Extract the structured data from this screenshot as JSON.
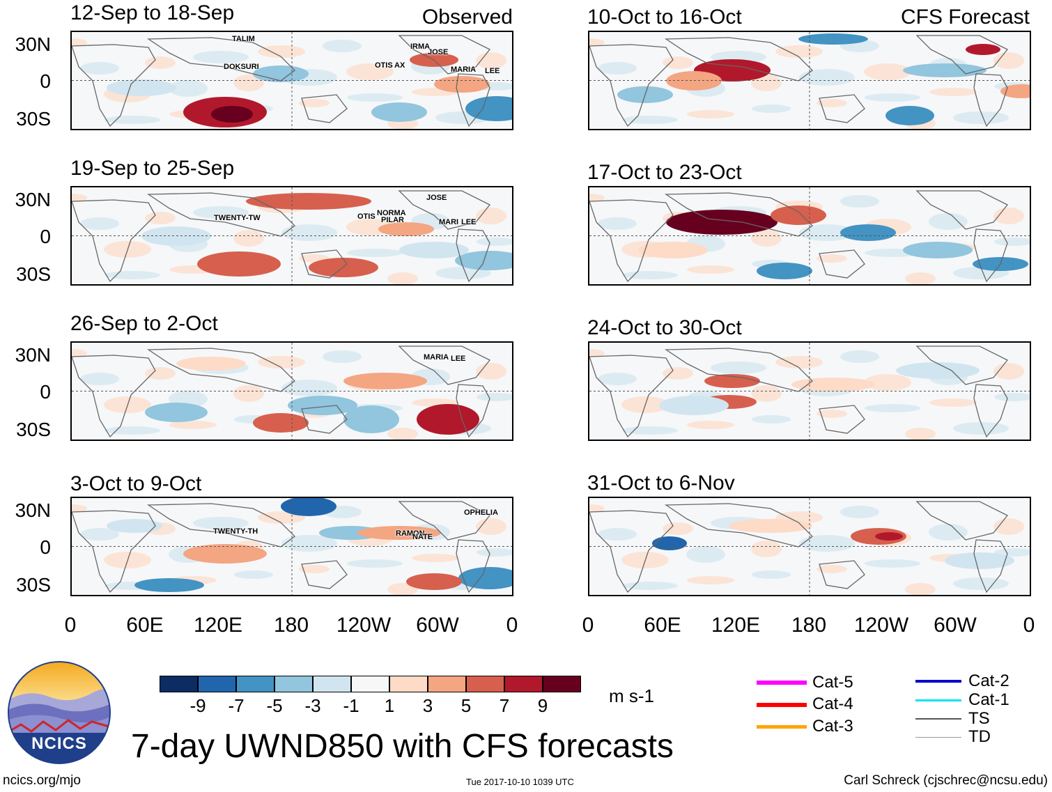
{
  "title": "7-day UWND850 with CFS forecasts",
  "observed_label": "Observed",
  "forecast_label": "CFS Forecast",
  "lat_labels": [
    "30N",
    "0",
    "30S"
  ],
  "lon_labels": [
    "0",
    "60E",
    "120E",
    "180",
    "120W",
    "60W",
    "0"
  ],
  "panels_observed": [
    {
      "period": "12-Sep to 18-Sep",
      "storms": [
        "TALIM",
        "DOKSURI",
        "IRMA",
        "JOSE",
        "OTIS",
        "AX",
        "MARIA",
        "LEE"
      ]
    },
    {
      "period": "19-Sep to 25-Sep",
      "storms": [
        "JOSE",
        "TWENTY-TW",
        "NORMA",
        "OTIS",
        "PILAR",
        "MARI",
        "LEE"
      ]
    },
    {
      "period": "26-Sep to 2-Oct",
      "storms": [
        "MARIA",
        "LEE"
      ]
    },
    {
      "period": "3-Oct to 9-Oct",
      "storms": [
        "OPHELIA",
        "TWENTY-TH",
        "RAMON",
        "NATE"
      ]
    }
  ],
  "panels_forecast": [
    {
      "period": "10-Oct to 16-Oct"
    },
    {
      "period": "17-Oct to 23-Oct"
    },
    {
      "period": "24-Oct to 30-Oct"
    },
    {
      "period": "31-Oct to 6-Nov"
    }
  ],
  "colorbar": {
    "labels": [
      "-9",
      "-7",
      "-5",
      "-3",
      "-1",
      "1",
      "3",
      "5",
      "7",
      "9"
    ],
    "colors": [
      "#0b2d63",
      "#2166ac",
      "#4393c3",
      "#92c5de",
      "#d1e5f0",
      "#f7f7f7",
      "#fddbc7",
      "#f4a582",
      "#d6604d",
      "#b2182b",
      "#67001f"
    ],
    "units": "m s-1"
  },
  "legend": {
    "items": [
      {
        "label": "Cat-5",
        "color": "#ff00ff"
      },
      {
        "label": "Cat-4",
        "color": "#ff0000"
      },
      {
        "label": "Cat-3",
        "color": "#ffa500"
      },
      {
        "label": "Cat-2",
        "color": "#0000cc"
      },
      {
        "label": "Cat-1",
        "color": "#00e5ee"
      },
      {
        "label": "TS",
        "color": "#555555"
      },
      {
        "label": "TD",
        "color": "#999999"
      }
    ]
  },
  "logo_text": "NCICS",
  "website": "ncics.org/mjo",
  "timestamp": "Tue 2017-10-10 1039 UTC",
  "credit": "Carl Schreck (cjschrec@ncsu.edu)"
}
